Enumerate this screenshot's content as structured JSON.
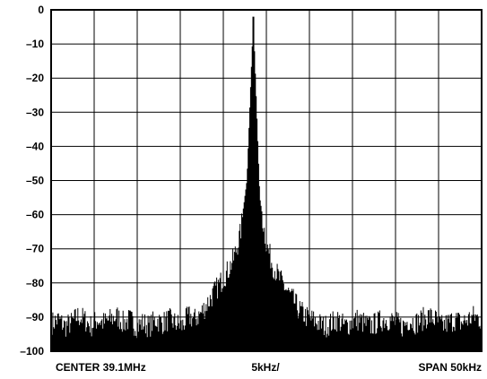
{
  "chart_data": {
    "type": "line",
    "title": "",
    "xlabel": "",
    "ylabel": "",
    "ylim": [
      -100,
      0
    ],
    "y_ticks": [
      "0",
      "–10",
      "–20",
      "–30",
      "–40",
      "–50",
      "–60",
      "–70",
      "–80",
      "–90",
      "–100"
    ],
    "y_tick_values": [
      0,
      -10,
      -20,
      -30,
      -40,
      -50,
      -60,
      -70,
      -80,
      -90,
      -100
    ],
    "x_divisions": 10,
    "grid": true,
    "footer": {
      "left": "CENTER 39.1MHz",
      "center": "5kHz/",
      "right": "SPAN 50kHz"
    },
    "series": [
      {
        "values": [
          -91,
          -90,
          -92,
          -91,
          -89,
          -90,
          -92,
          -90,
          -91,
          -90,
          -89,
          -91,
          -90,
          -92,
          -91,
          -92,
          -90,
          -91,
          -90,
          -91,
          -92,
          -89,
          -90,
          -88,
          -85,
          -82,
          -79,
          -76,
          -72,
          -65,
          -50,
          -2,
          -55,
          -68,
          -74,
          -78,
          -81,
          -84,
          -87,
          -89,
          -90,
          -91,
          -92,
          -91,
          -90,
          -92,
          -91,
          -90,
          -91,
          -92,
          -91,
          -90,
          -90,
          -91,
          -92,
          -90,
          -91,
          -90,
          -89,
          -90,
          -92,
          -91,
          -90,
          -91,
          -90,
          -89,
          -90
        ],
        "color": "#000000"
      }
    ]
  },
  "colors": {
    "background": "#ffffff",
    "ink": "#000000"
  }
}
